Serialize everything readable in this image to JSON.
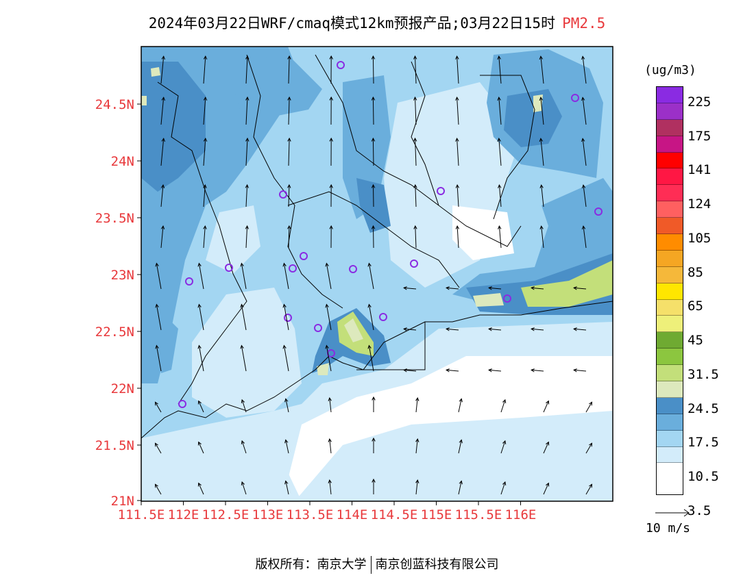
{
  "title": {
    "main": "2024年03月22日WRF/cmaq模式12km预报产品;03月22日15时",
    "pollutant": "PM2.5"
  },
  "map": {
    "lat_labels": [
      "24.5N",
      "24N",
      "23.5N",
      "23N",
      "22.5N",
      "22N",
      "21.5N",
      "21N"
    ],
    "lon_labels": [
      "111.5E",
      "112E",
      "112.5E",
      "113E",
      "113.5E",
      "114E",
      "114.5E",
      "115E",
      "115.5E",
      "116E"
    ],
    "axis_label_color": "#e8383b",
    "station_markers": "purple circles"
  },
  "colorbar": {
    "unit": "(ug/m3)",
    "labels": [
      "225",
      "175",
      "141",
      "124",
      "105",
      "85",
      "65",
      "45",
      "31.5",
      "24.5",
      "17.5",
      "10.5",
      "3.5"
    ],
    "colors": [
      "#8a2be2",
      "#9b30c8",
      "#b03060",
      "#c71585",
      "#ff0000",
      "#ff1744",
      "#ff2d55",
      "#ff6060",
      "#f05a28",
      "#ff8c00",
      "#f5a623",
      "#f5b83a",
      "#ffe600",
      "#f5e06a",
      "#eef07a",
      "#6faa32",
      "#8cc63f",
      "#c3df7a",
      "#dde9bd",
      "#4a8fc7",
      "#6aaedc",
      "#a3d6f2",
      "#d3ecfa",
      "#ffffff"
    ]
  },
  "reference_vector": {
    "label": "10 m/s"
  },
  "footer": {
    "left": "版权所有：南京大学",
    "right": "南京创蓝科技有限公司"
  }
}
